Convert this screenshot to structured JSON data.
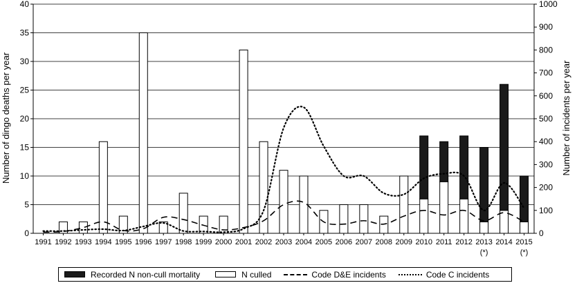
{
  "chart_data": {
    "type": "bar",
    "title": "",
    "xlabel": "",
    "ylabel_left": "Number of dingo deaths per year",
    "ylabel_right": "Number of incidents per year",
    "ylim_left": [
      0,
      40
    ],
    "ylim_right": [
      0,
      1000
    ],
    "yticks_left": [
      "0",
      "5",
      "10",
      "15",
      "20",
      "25",
      "30",
      "35",
      "40"
    ],
    "yticks_right": [
      "0",
      "100",
      "200",
      "300",
      "400",
      "500",
      "600",
      "700",
      "800",
      "900",
      "1000"
    ],
    "grid": "horizontal",
    "legend_position": "bottom",
    "categories": [
      "1991",
      "1992",
      "1993",
      "1994",
      "1995",
      "1996",
      "1997",
      "1998",
      "1999",
      "2000",
      "2001",
      "2002",
      "2003",
      "2004",
      "2005",
      "2006",
      "2007",
      "2008",
      "2009",
      "2010",
      "2011",
      "2012",
      "2013",
      "2014",
      "2015"
    ],
    "category_notes": [
      "",
      "",
      "",
      "",
      "",
      "",
      "",
      "",
      "",
      "",
      "",
      "",
      "",
      "",
      "",
      "",
      "",
      "",
      "",
      "",
      "",
      "",
      "(*)",
      "",
      "(*)"
    ],
    "series": [
      {
        "name": "Recorded N non-cull mortality",
        "axis": "left",
        "kind": "stacked-bar",
        "values": [
          0,
          0,
          0,
          0,
          0,
          0,
          0,
          0,
          0,
          0,
          0,
          0,
          0,
          0,
          0,
          0,
          0,
          0,
          0,
          11,
          7,
          11,
          13,
          22,
          8
        ]
      },
      {
        "name": "N culled",
        "axis": "left",
        "kind": "bar",
        "values": [
          0,
          2,
          2,
          16,
          3,
          35,
          2,
          7,
          3,
          3,
          32,
          16,
          11,
          10,
          4,
          5,
          5,
          3,
          10,
          6,
          9,
          6,
          2,
          4,
          2
        ]
      },
      {
        "name": "Code D&E incidents",
        "axis": "right",
        "kind": "dashed-line",
        "values": [
          5,
          8,
          25,
          50,
          12,
          20,
          70,
          60,
          35,
          15,
          25,
          55,
          125,
          135,
          50,
          40,
          55,
          40,
          75,
          100,
          80,
          100,
          55,
          90,
          50
        ]
      },
      {
        "name": "Code C incidents",
        "axis": "right",
        "kind": "dotted-line",
        "values": [
          10,
          10,
          15,
          18,
          12,
          30,
          45,
          10,
          8,
          5,
          20,
          100,
          460,
          550,
          380,
          250,
          250,
          175,
          170,
          240,
          260,
          250,
          100,
          220,
          110
        ]
      }
    ]
  }
}
